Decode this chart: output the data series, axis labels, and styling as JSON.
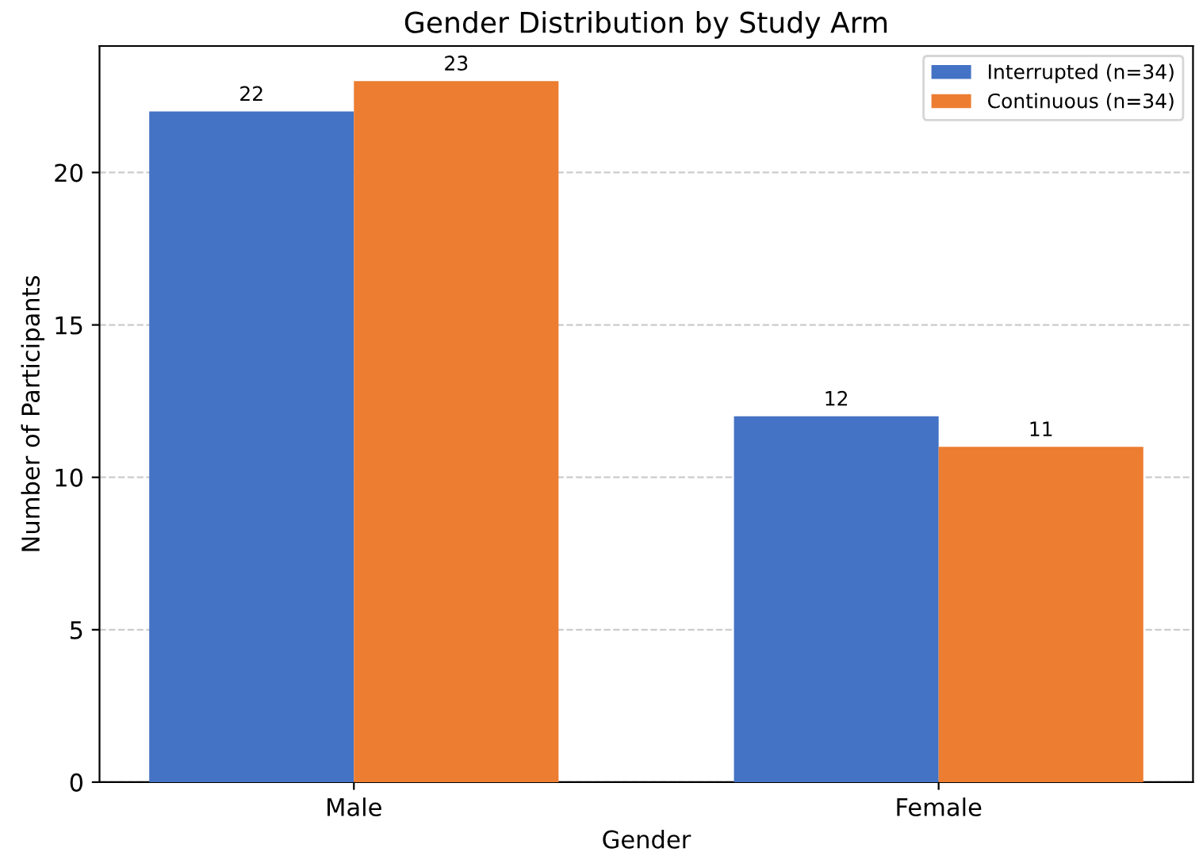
{
  "chart_data": {
    "type": "bar",
    "title": "Gender Distribution by Study Arm",
    "xlabel": "Gender",
    "ylabel": "Number of Participants",
    "categories": [
      "Male",
      "Female"
    ],
    "series": [
      {
        "name": "Interrupted (n=34)",
        "color": "#4472c4",
        "values": [
          22,
          12
        ]
      },
      {
        "name": "Continuous (n=34)",
        "color": "#ed7d31",
        "values": [
          23,
          11
        ]
      }
    ],
    "ylim": [
      0,
      24.15
    ],
    "yticks": [
      0,
      5,
      10,
      15,
      20
    ],
    "grid": "y",
    "legend": "top right",
    "data_labels": true
  }
}
